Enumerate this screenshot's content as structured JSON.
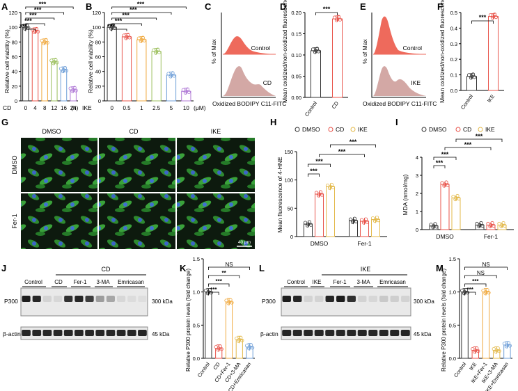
{
  "colors": {
    "red": "#e8534a",
    "orange": "#f0a83c",
    "yellow": "#e3b94a",
    "green": "#9bbf5c",
    "blue": "#6f9fd8",
    "purple": "#b07ad6",
    "black": "#333333",
    "fitc_fill": "#ee6a5c",
    "fitc_fill2": "#d3a8a5",
    "micro_bg": "#0d1a0e"
  },
  "panels": {
    "A": "A",
    "B": "B",
    "C": "C",
    "D": "D",
    "E": "E",
    "F": "F",
    "G": "G",
    "H": "H",
    "I": "I",
    "J": "J",
    "K": "K",
    "L": "L",
    "M": "M"
  },
  "panel_a": {
    "ylabel": "Relative cell viability (%)",
    "xprefix": "CD",
    "xunit": "(h)",
    "sig": [
      "***",
      "***",
      "***",
      "***",
      "***"
    ]
  },
  "panel_b": {
    "ylabel": "Relative cell viability (%)",
    "xprefix": "IKE",
    "xunit": "(μM)",
    "sig": [
      "***",
      "***",
      "***",
      "***",
      "***"
    ]
  },
  "panel_c": {
    "ylabel": "% of Max",
    "xlabel": "Oxidized BODIPY C11-FITC",
    "top_label": "Control",
    "bottom_label": "CD"
  },
  "panel_d": {
    "ylabel": "Mean oxidized/non-oxidized fluorescence",
    "sig": "***"
  },
  "panel_e": {
    "ylabel": "% of Max",
    "xlabel": "Oxidized BODIPY C11-FITC",
    "top_label": "Control",
    "bottom_label": "IKE"
  },
  "panel_f": {
    "ylabel": "Mean oxidized/non-oxidized fluorescence",
    "sig": "***"
  },
  "panel_g": {
    "col1": "DMSO",
    "col2": "CD",
    "col3": "IKE",
    "row1": "DMSO",
    "row2": "Fer-1",
    "scale": "40 μm"
  },
  "panel_h": {
    "ylabel": "Mean fluorescence of 4-HNE",
    "legend": [
      "DMSO",
      "CD",
      "IKE"
    ],
    "sig": [
      "***",
      "***",
      "***",
      "***"
    ]
  },
  "panel_i": {
    "ylabel": "MDA (nmol/mg)",
    "legend": [
      "DMSO",
      "CD",
      "IKE"
    ],
    "sig": [
      "***",
      "***",
      "***",
      "***"
    ]
  },
  "panel_j": {
    "header": "CD",
    "lanes": [
      "Control",
      "CD",
      "Fer-1",
      "3-MA",
      "Emricasan"
    ],
    "rows": [
      "P300",
      "β-actin"
    ],
    "sizes": [
      "300 kDa",
      "45 kDa"
    ]
  },
  "panel_k": {
    "ylabel": "Relative P300 protein levels (fold change)",
    "sig": [
      "***",
      "***",
      "**",
      "NS"
    ]
  },
  "panel_l": {
    "header": "IKE",
    "lanes": [
      "Control",
      "IKE",
      "Fer-1",
      "3-MA",
      "Emricasan"
    ],
    "rows": [
      "P300",
      "β-actin"
    ],
    "sizes": [
      "300 kDa",
      "45 kDa"
    ]
  },
  "panel_m": {
    "ylabel": "Relative P300 protein levels (fold change)",
    "sig": [
      "***",
      "***",
      "NS",
      "NS"
    ]
  },
  "chart_data": [
    {
      "panel": "A",
      "type": "bar",
      "categories": [
        "0",
        "4",
        "8",
        "12",
        "16",
        "24"
      ],
      "values": [
        100,
        95,
        80,
        53,
        42,
        15
      ],
      "ylim": [
        0,
        120
      ],
      "yticks": [
        "0",
        "20",
        "40",
        "60",
        "80",
        "100",
        "120"
      ]
    },
    {
      "panel": "B",
      "type": "bar",
      "categories": [
        "0",
        "0.5",
        "1",
        "2.5",
        "5",
        "10"
      ],
      "values": [
        100,
        87,
        83,
        67,
        35,
        13
      ],
      "ylim": [
        0,
        120
      ],
      "yticks": [
        "0",
        "20",
        "40",
        "60",
        "80",
        "100",
        "120"
      ]
    },
    {
      "panel": "D",
      "type": "bar",
      "categories": [
        "Control",
        "CD"
      ],
      "values": [
        0.11,
        0.185
      ],
      "ylim": [
        0,
        0.2
      ],
      "yticks": [
        "0.00",
        "0.05",
        "0.10",
        "0.15",
        "0.20"
      ]
    },
    {
      "panel": "F",
      "type": "bar",
      "categories": [
        "Control",
        "IKE"
      ],
      "values": [
        0.09,
        0.475
      ],
      "ylim": [
        0,
        0.5
      ],
      "yticks": [
        "0.0",
        "0.1",
        "0.2",
        "0.3",
        "0.4",
        "0.5"
      ]
    },
    {
      "panel": "H",
      "type": "bar",
      "categories": [
        "DMSO",
        "Fer-1"
      ],
      "series": [
        {
          "name": "DMSO",
          "values": [
            22,
            28
          ]
        },
        {
          "name": "CD",
          "values": [
            75,
            27
          ]
        },
        {
          "name": "IKE",
          "values": [
            88,
            30
          ]
        }
      ],
      "ylim": [
        0,
        150
      ],
      "yticks": [
        "0",
        "50",
        "100",
        "150"
      ]
    },
    {
      "panel": "I",
      "type": "bar",
      "categories": [
        "DMSO",
        "Fer-1"
      ],
      "series": [
        {
          "name": "DMSO",
          "values": [
            0.2,
            0.25
          ]
        },
        {
          "name": "CD",
          "values": [
            2.5,
            0.25
          ]
        },
        {
          "name": "IKE",
          "values": [
            1.75,
            0.25
          ]
        }
      ],
      "ylim": [
        0,
        4
      ],
      "yticks": [
        "0",
        "1",
        "2",
        "3",
        "4"
      ]
    },
    {
      "panel": "K",
      "type": "bar",
      "categories": [
        "Control",
        "CD",
        "CD+Fer-1",
        "CD+3-MA",
        "CD+Emricasan"
      ],
      "values": [
        1.0,
        0.15,
        0.85,
        0.28,
        0.17
      ],
      "ylim": [
        0,
        1.5
      ],
      "yticks": [
        "0.0",
        "0.5",
        "1.0",
        "1.5"
      ]
    },
    {
      "panel": "M",
      "type": "bar",
      "categories": [
        "Control",
        "IKE",
        "IKE+Fer-1",
        "IKE+3-MA",
        "IKE+Emricasan"
      ],
      "values": [
        1.0,
        0.12,
        1.0,
        0.12,
        0.2
      ],
      "ylim": [
        0,
        1.5
      ],
      "yticks": [
        "0.0",
        "0.5",
        "1.0",
        "1.5"
      ]
    }
  ]
}
